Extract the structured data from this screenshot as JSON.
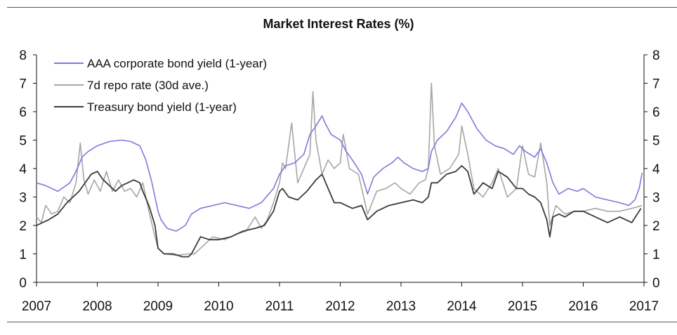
{
  "chart_data": {
    "type": "line",
    "title": "Market Interest Rates (%)",
    "xlabel": "",
    "ylabel": "",
    "xlim": [
      2007.0,
      2017.0
    ],
    "ylim": [
      0,
      8
    ],
    "x_ticks": [
      "2007",
      "2008",
      "2009",
      "2010",
      "2011",
      "2012",
      "2013",
      "2014",
      "2015",
      "2016",
      "2017"
    ],
    "y_ticks": [
      "0",
      "1",
      "2",
      "3",
      "4",
      "5",
      "6",
      "7",
      "8"
    ],
    "grid": false,
    "legend_position": "top-left",
    "series": [
      {
        "name": "AAA corporate bond yield (1-year)",
        "color": "#7b7bdc",
        "x": [
          2007.0,
          2007.15,
          2007.35,
          2007.55,
          2007.65,
          2007.75,
          2007.85,
          2008.0,
          2008.2,
          2008.4,
          2008.55,
          2008.7,
          2008.8,
          2008.9,
          2009.0,
          2009.05,
          2009.15,
          2009.3,
          2009.45,
          2009.55,
          2009.7,
          2009.9,
          2010.1,
          2010.3,
          2010.5,
          2010.7,
          2010.9,
          2011.0,
          2011.1,
          2011.25,
          2011.4,
          2011.5,
          2011.6,
          2011.7,
          2011.75,
          2011.85,
          2012.0,
          2012.1,
          2012.2,
          2012.35,
          2012.45,
          2012.55,
          2012.7,
          2012.85,
          2012.95,
          2013.05,
          2013.2,
          2013.35,
          2013.45,
          2013.5,
          2013.6,
          2013.75,
          2013.9,
          2014.0,
          2014.1,
          2014.25,
          2014.4,
          2014.55,
          2014.7,
          2014.85,
          2014.95,
          2015.05,
          2015.2,
          2015.3,
          2015.4,
          2015.5,
          2015.6,
          2015.75,
          2015.9,
          2016.0,
          2016.2,
          2016.4,
          2016.6,
          2016.75,
          2016.85,
          2016.92,
          2016.97
        ],
        "values": [
          3.5,
          3.4,
          3.2,
          3.5,
          3.9,
          4.4,
          4.6,
          4.8,
          4.95,
          5.0,
          4.95,
          4.8,
          4.3,
          3.5,
          2.5,
          2.2,
          1.9,
          1.8,
          2.0,
          2.4,
          2.6,
          2.7,
          2.8,
          2.7,
          2.6,
          2.8,
          3.3,
          3.8,
          4.1,
          4.2,
          4.5,
          5.2,
          5.5,
          5.85,
          5.6,
          5.2,
          5.0,
          4.6,
          4.3,
          3.8,
          3.1,
          3.7,
          4.0,
          4.2,
          4.4,
          4.2,
          4.0,
          3.9,
          4.0,
          4.6,
          5.0,
          5.3,
          5.8,
          6.3,
          6.0,
          5.4,
          5.0,
          4.8,
          4.7,
          4.5,
          4.8,
          4.6,
          4.4,
          4.7,
          4.2,
          3.5,
          3.1,
          3.3,
          3.2,
          3.3,
          3.0,
          2.9,
          2.8,
          2.7,
          2.9,
          3.3,
          3.85
        ]
      },
      {
        "name": "7d repo rate (30d ave.)",
        "color": "#a6a6a6",
        "x": [
          2007.0,
          2007.08,
          2007.15,
          2007.25,
          2007.35,
          2007.45,
          2007.55,
          2007.65,
          2007.72,
          2007.78,
          2007.85,
          2007.95,
          2008.05,
          2008.15,
          2008.25,
          2008.35,
          2008.45,
          2008.55,
          2008.65,
          2008.75,
          2008.85,
          2008.95,
          2009.0,
          2009.1,
          2009.3,
          2009.5,
          2009.6,
          2009.75,
          2009.9,
          2010.1,
          2010.3,
          2010.45,
          2010.6,
          2010.7,
          2010.8,
          2010.9,
          2011.0,
          2011.05,
          2011.1,
          2011.2,
          2011.3,
          2011.4,
          2011.5,
          2011.55,
          2011.6,
          2011.7,
          2011.8,
          2011.9,
          2012.0,
          2012.05,
          2012.15,
          2012.3,
          2012.45,
          2012.6,
          2012.75,
          2012.9,
          2013.0,
          2013.15,
          2013.3,
          2013.4,
          2013.45,
          2013.5,
          2013.55,
          2013.65,
          2013.8,
          2013.95,
          2014.0,
          2014.1,
          2014.2,
          2014.35,
          2014.5,
          2014.6,
          2014.75,
          2014.9,
          2015.0,
          2015.1,
          2015.2,
          2015.3,
          2015.4,
          2015.45,
          2015.55,
          2015.7,
          2015.85,
          2016.0,
          2016.2,
          2016.4,
          2016.6,
          2016.8,
          2016.97
        ],
        "values": [
          2.3,
          2.1,
          2.7,
          2.4,
          2.5,
          3.0,
          2.8,
          3.5,
          4.9,
          3.6,
          3.1,
          3.6,
          3.2,
          3.9,
          3.2,
          3.6,
          3.2,
          3.3,
          3.0,
          3.5,
          2.5,
          1.6,
          1.2,
          1.0,
          0.95,
          1.0,
          1.0,
          1.3,
          1.6,
          1.5,
          1.7,
          1.8,
          2.3,
          1.9,
          2.2,
          2.8,
          3.5,
          4.2,
          4.0,
          5.6,
          3.5,
          4.0,
          4.5,
          6.7,
          5.0,
          3.8,
          4.3,
          4.0,
          4.2,
          5.2,
          4.0,
          3.8,
          2.4,
          3.2,
          3.3,
          3.5,
          3.3,
          3.1,
          3.5,
          3.6,
          4.0,
          7.0,
          4.8,
          3.8,
          4.0,
          4.5,
          5.5,
          4.5,
          3.3,
          3.0,
          3.5,
          4.0,
          3.0,
          3.3,
          4.8,
          3.8,
          3.7,
          4.9,
          3.5,
          2.0,
          2.7,
          2.4,
          2.5,
          2.5,
          2.6,
          2.5,
          2.5,
          2.6,
          2.7
        ]
      },
      {
        "name": "Treasury bond yield (1-year)",
        "color": "#3a3a3a",
        "x": [
          2007.0,
          2007.1,
          2007.2,
          2007.35,
          2007.5,
          2007.6,
          2007.7,
          2007.8,
          2007.9,
          2008.0,
          2008.1,
          2008.2,
          2008.3,
          2008.4,
          2008.5,
          2008.6,
          2008.7,
          2008.75,
          2008.85,
          2008.95,
          2009.0,
          2009.1,
          2009.25,
          2009.4,
          2009.5,
          2009.55,
          2009.7,
          2009.85,
          2010.0,
          2010.2,
          2010.4,
          2010.6,
          2010.75,
          2010.9,
          2011.0,
          2011.05,
          2011.15,
          2011.3,
          2011.45,
          2011.6,
          2011.7,
          2011.8,
          2011.9,
          2012.0,
          2012.2,
          2012.35,
          2012.45,
          2012.6,
          2012.8,
          2013.0,
          2013.2,
          2013.35,
          2013.45,
          2013.5,
          2013.6,
          2013.75,
          2013.9,
          2014.0,
          2014.1,
          2014.2,
          2014.35,
          2014.5,
          2014.6,
          2014.75,
          2014.9,
          2015.0,
          2015.1,
          2015.2,
          2015.3,
          2015.4,
          2015.45,
          2015.5,
          2015.6,
          2015.7,
          2015.85,
          2016.0,
          2016.2,
          2016.4,
          2016.6,
          2016.8,
          2016.95
        ],
        "values": [
          2.0,
          2.1,
          2.2,
          2.4,
          2.8,
          3.0,
          3.2,
          3.5,
          3.8,
          3.9,
          3.6,
          3.4,
          3.2,
          3.4,
          3.5,
          3.6,
          3.5,
          3.2,
          2.7,
          2.0,
          1.2,
          1.0,
          1.0,
          0.9,
          0.9,
          1.0,
          1.6,
          1.5,
          1.5,
          1.6,
          1.8,
          1.9,
          2.0,
          2.5,
          3.2,
          3.3,
          3.0,
          2.9,
          3.2,
          3.6,
          3.8,
          3.3,
          2.8,
          2.8,
          2.6,
          2.7,
          2.2,
          2.5,
          2.7,
          2.8,
          2.9,
          2.8,
          3.0,
          3.5,
          3.5,
          3.8,
          3.9,
          4.1,
          3.9,
          3.1,
          3.5,
          3.3,
          3.9,
          3.7,
          3.3,
          3.3,
          3.1,
          3.0,
          2.8,
          2.2,
          1.6,
          2.3,
          2.4,
          2.3,
          2.5,
          2.5,
          2.3,
          2.1,
          2.3,
          2.1,
          2.6
        ]
      }
    ]
  }
}
